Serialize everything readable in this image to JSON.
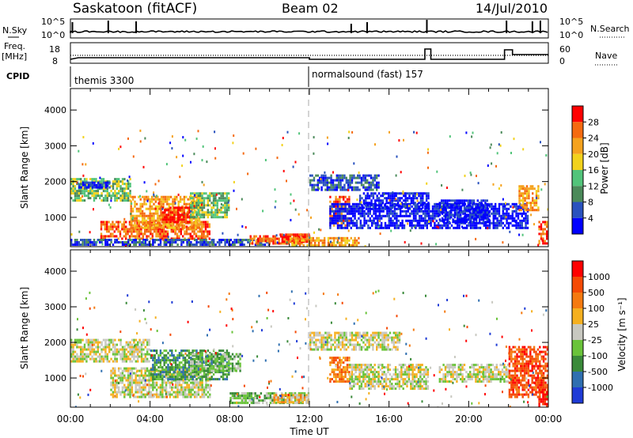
{
  "header": {
    "station": "Saskatoon (fitACF)",
    "beam": "Beam 02",
    "date": "14/Jul/2010"
  },
  "top_panels": {
    "nsky": {
      "left_label": "N.Sky",
      "right_label": "N.Search",
      "left_ticks": [
        "10^5",
        "10^0"
      ],
      "right_ticks": [
        "10^5",
        "10^0"
      ]
    },
    "freq": {
      "left_label": "Freq.",
      "left_unit": "[MHz]",
      "right_label": "Nave",
      "left_ticks": [
        "18",
        "8"
      ],
      "right_ticks": [
        "60",
        "0"
      ]
    },
    "cpid": {
      "label": "CPID",
      "segments": [
        {
          "start_hour": 0,
          "label": "themis 3300"
        },
        {
          "start_hour": 12,
          "label": "normalsound (fast) 157"
        }
      ]
    }
  },
  "chart_data": [
    {
      "type": "heatmap",
      "name": "power",
      "ylabel": "Slant Range [km]",
      "xlabel": "Time UT",
      "x_range_hours": [
        0,
        24
      ],
      "ylim": [
        180,
        4600
      ],
      "y_ticks": [
        1000,
        2000,
        3000,
        4000
      ],
      "y_tick_labels": [
        "1000",
        "2000",
        "3000",
        "4000"
      ],
      "colorbar": {
        "label": "Power [dB]",
        "ticks": [
          "4",
          "8",
          "12",
          "16",
          "20",
          "24",
          "28"
        ],
        "colors": [
          "#0000ff",
          "#2a52be",
          "#4b8a5a",
          "#52c47a",
          "#f2d21c",
          "#f5a21e",
          "#f56a10",
          "#ff0000"
        ]
      },
      "regions": [
        {
          "x": [
            0.0,
            3.0
          ],
          "y": [
            1500,
            2100
          ],
          "level": 3
        },
        {
          "x": [
            0.3,
            2.0
          ],
          "y": [
            1850,
            2000
          ],
          "level": 0
        },
        {
          "x": [
            1.5,
            7.0
          ],
          "y": [
            400,
            900
          ],
          "level": 6
        },
        {
          "x": [
            3.0,
            6.5
          ],
          "y": [
            700,
            1600
          ],
          "level": 5
        },
        {
          "x": [
            4.5,
            6.0
          ],
          "y": [
            900,
            1300
          ],
          "level": 7
        },
        {
          "x": [
            6.0,
            8.0
          ],
          "y": [
            1000,
            1700
          ],
          "level": 3
        },
        {
          "x": [
            0.0,
            10.0
          ],
          "y": [
            220,
            400
          ],
          "level": 1
        },
        {
          "x": [
            9.0,
            12.0
          ],
          "y": [
            250,
            500
          ],
          "level": 6
        },
        {
          "x": [
            10.5,
            12.0
          ],
          "y": [
            350,
            550
          ],
          "level": 7
        },
        {
          "x": [
            11.0,
            14.5
          ],
          "y": [
            250,
            450
          ],
          "level": 5
        },
        {
          "x": [
            13.0,
            14.0
          ],
          "y": [
            800,
            1600
          ],
          "level": 6
        },
        {
          "x": [
            12.0,
            15.5
          ],
          "y": [
            1800,
            2200
          ],
          "level": 1
        },
        {
          "x": [
            13.0,
            23.0
          ],
          "y": [
            700,
            1400
          ],
          "level": 0
        },
        {
          "x": [
            14.5,
            18.0
          ],
          "y": [
            1300,
            1700
          ],
          "level": 0
        },
        {
          "x": [
            18.5,
            21.0
          ],
          "y": [
            900,
            1500
          ],
          "level": 0
        },
        {
          "x": [
            22.5,
            23.5
          ],
          "y": [
            1200,
            1900
          ],
          "level": 5
        },
        {
          "x": [
            23.5,
            24.0
          ],
          "y": [
            300,
            900
          ],
          "level": 6
        }
      ]
    },
    {
      "type": "heatmap",
      "name": "velocity",
      "ylabel": "Slant Range [km]",
      "xlabel": "Time UT",
      "x_range_hours": [
        0,
        24
      ],
      "ylim": [
        180,
        4600
      ],
      "y_ticks": [
        1000,
        2000,
        3000,
        4000
      ],
      "y_tick_labels": [
        "1000",
        "2000",
        "3000",
        "4000"
      ],
      "x_tick_labels": [
        "00:00",
        "04:00",
        "08:00",
        "12:00",
        "16:00",
        "20:00",
        "00:00"
      ],
      "colorbar": {
        "label": "Velocity [m s⁻¹]",
        "ticks": [
          "1000",
          "500",
          "100",
          "25",
          "-25",
          "-100",
          "-500",
          "-1000"
        ],
        "colors": [
          "#1f3bd6",
          "#2f6fb0",
          "#3a8a3a",
          "#6ac33a",
          "#c8c8c0",
          "#f5b020",
          "#f57a10",
          "#f54a05",
          "#ff0000"
        ]
      },
      "regions": [
        {
          "x": [
            0.0,
            4.0
          ],
          "y": [
            1500,
            2100
          ],
          "level": 4
        },
        {
          "x": [
            2.0,
            7.0
          ],
          "y": [
            500,
            1300
          ],
          "level": 4
        },
        {
          "x": [
            4.0,
            8.0
          ],
          "y": [
            1000,
            1800
          ],
          "level": 2
        },
        {
          "x": [
            6.0,
            8.5
          ],
          "y": [
            1200,
            1700
          ],
          "level": 3
        },
        {
          "x": [
            8.0,
            12.0
          ],
          "y": [
            300,
            600
          ],
          "level": 3
        },
        {
          "x": [
            10.0,
            12.0
          ],
          "y": [
            350,
            550
          ],
          "level": 5
        },
        {
          "x": [
            13.0,
            14.0
          ],
          "y": [
            900,
            1600
          ],
          "level": 6
        },
        {
          "x": [
            12.0,
            16.5
          ],
          "y": [
            1800,
            2300
          ],
          "level": 4
        },
        {
          "x": [
            14.0,
            18.0
          ],
          "y": [
            700,
            1400
          ],
          "level": 4
        },
        {
          "x": [
            18.5,
            22.0
          ],
          "y": [
            900,
            1400
          ],
          "level": 4
        },
        {
          "x": [
            22.0,
            24.0
          ],
          "y": [
            500,
            1900
          ],
          "level": 7
        },
        {
          "x": [
            23.5,
            24.0
          ],
          "y": [
            200,
            700
          ],
          "level": 8
        }
      ]
    }
  ]
}
